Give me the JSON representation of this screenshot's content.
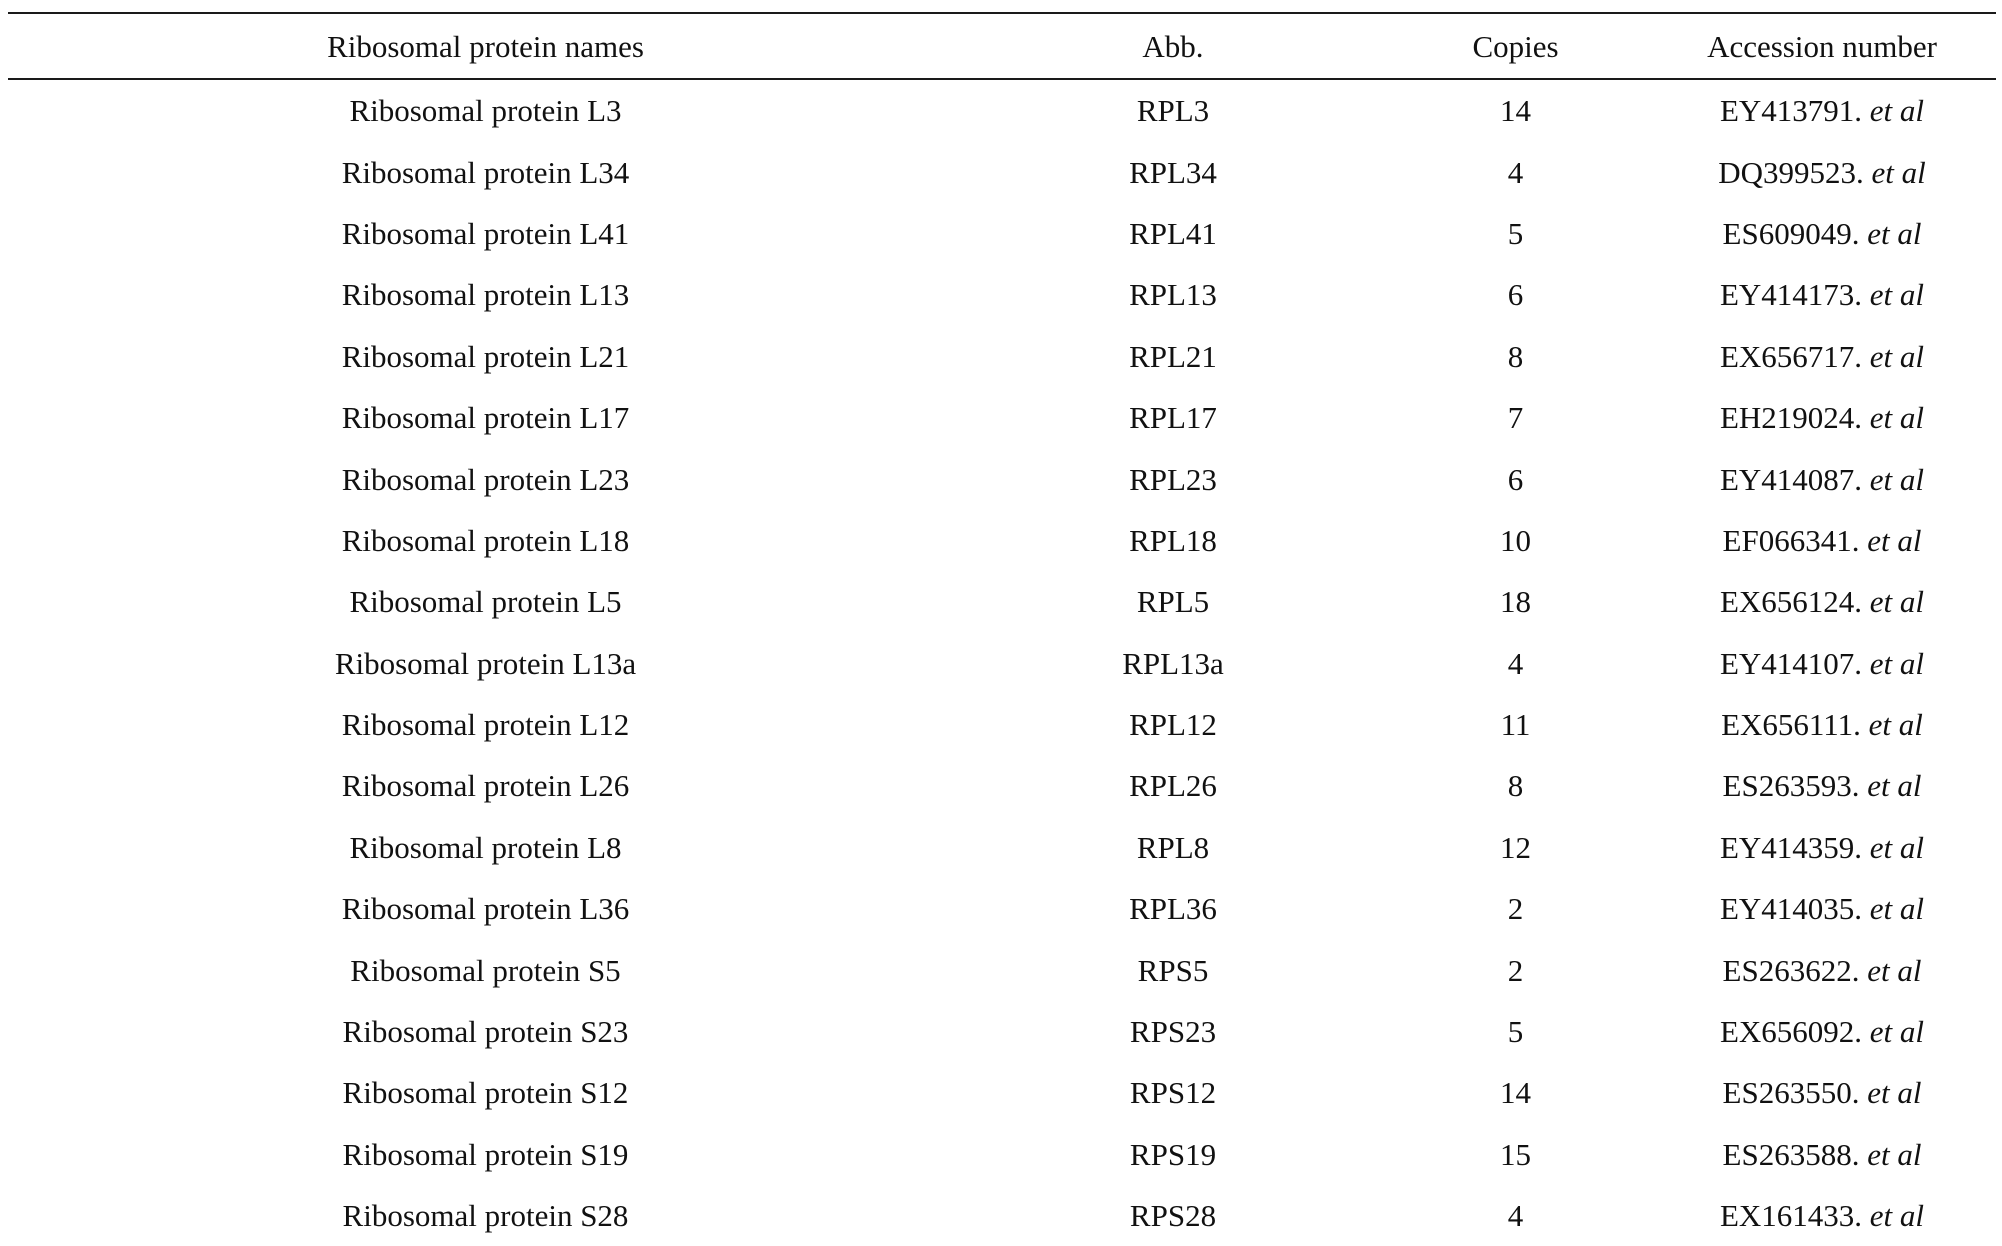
{
  "table": {
    "headers": {
      "name": "Ribosomal protein names",
      "abb": "Abb.",
      "copies": "Copies",
      "accession": "Accession number"
    },
    "etal": "et al",
    "rows": [
      {
        "name": "Ribosomal protein L3",
        "abb": "RPL3",
        "copies": "14",
        "accession": "EY413791."
      },
      {
        "name": "Ribosomal protein L34",
        "abb": "RPL34",
        "copies": "4",
        "accession": "DQ399523."
      },
      {
        "name": "Ribosomal protein L41",
        "abb": "RPL41",
        "copies": "5",
        "accession": "ES609049."
      },
      {
        "name": "Ribosomal protein L13",
        "abb": "RPL13",
        "copies": "6",
        "accession": "EY414173."
      },
      {
        "name": "Ribosomal protein L21",
        "abb": "RPL21",
        "copies": "8",
        "accession": "EX656717."
      },
      {
        "name": "Ribosomal protein L17",
        "abb": "RPL17",
        "copies": "7",
        "accession": "EH219024."
      },
      {
        "name": "Ribosomal protein L23",
        "abb": "RPL23",
        "copies": "6",
        "accession": "EY414087."
      },
      {
        "name": "Ribosomal protein L18",
        "abb": "RPL18",
        "copies": "10",
        "accession": "EF066341."
      },
      {
        "name": "Ribosomal protein L5",
        "abb": "RPL5",
        "copies": "18",
        "accession": "EX656124."
      },
      {
        "name": "Ribosomal protein L13a",
        "abb": "RPL13a",
        "copies": "4",
        "accession": "EY414107."
      },
      {
        "name": "Ribosomal protein L12",
        "abb": "RPL12",
        "copies": "11",
        "accession": "EX656111."
      },
      {
        "name": "Ribosomal protein L26",
        "abb": "RPL26",
        "copies": "8",
        "accession": "ES263593."
      },
      {
        "name": "Ribosomal protein L8",
        "abb": "RPL8",
        "copies": "12",
        "accession": "EY414359."
      },
      {
        "name": "Ribosomal protein L36",
        "abb": "RPL36",
        "copies": "2",
        "accession": "EY414035."
      },
      {
        "name": "Ribosomal protein S5",
        "abb": "RPS5",
        "copies": "2",
        "accession": "ES263622."
      },
      {
        "name": "Ribosomal protein S23",
        "abb": "RPS23",
        "copies": "5",
        "accession": "EX656092."
      },
      {
        "name": "Ribosomal protein S12",
        "abb": "RPS12",
        "copies": "14",
        "accession": "ES263550."
      },
      {
        "name": "Ribosomal protein S19",
        "abb": "RPS19",
        "copies": "15",
        "accession": "ES263588."
      },
      {
        "name": "Ribosomal protein S28",
        "abb": "RPS28",
        "copies": "4",
        "accession": "EX161433."
      }
    ]
  }
}
